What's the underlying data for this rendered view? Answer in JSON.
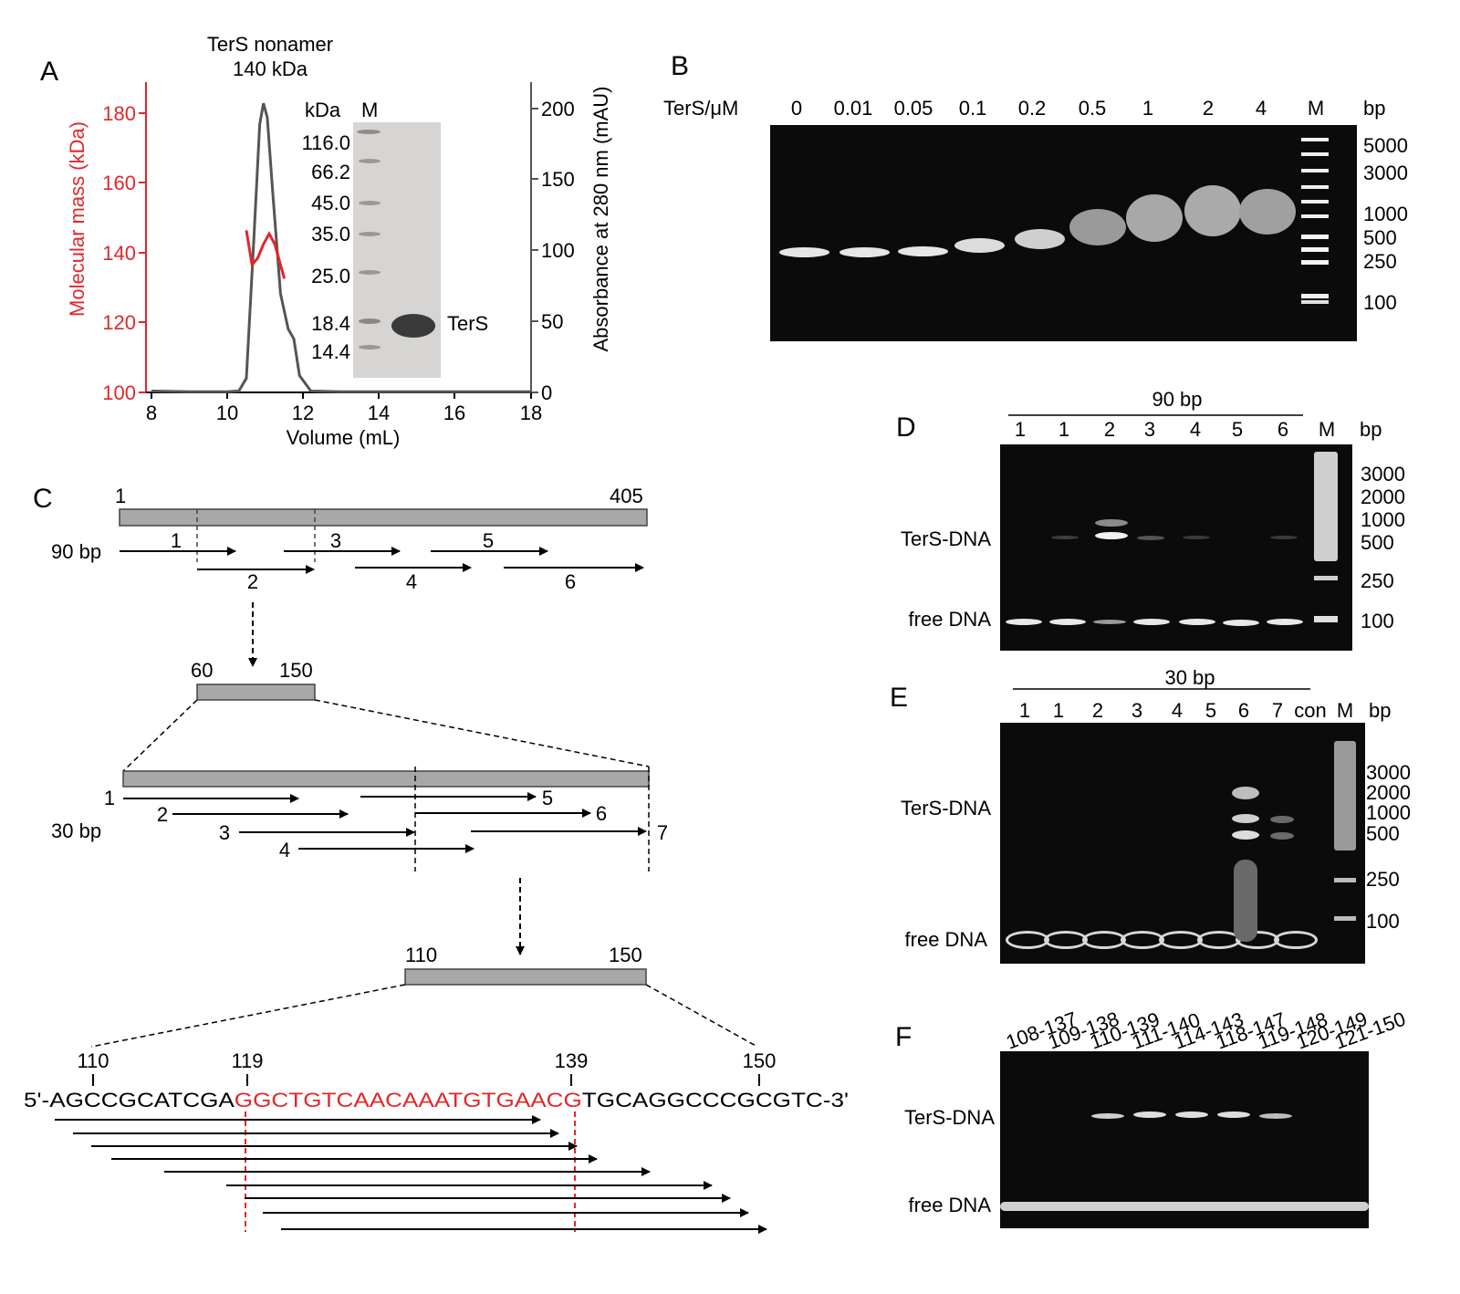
{
  "colors": {
    "red": "#e3262b",
    "grey_line": "#555555",
    "bar_fill": "#a9a7a7",
    "gel_bg": "#0b0b0b"
  },
  "panel_a": {
    "label": "A",
    "annotation_line1": "TerS nonamer",
    "annotation_line2": "140 kDa",
    "y_left_label": "Molecular mass (kDa)",
    "y_right_label": "Absorbance at 280 nm (mAU)",
    "x_label": "Volume (mL)",
    "inset_kda_label": "kDa",
    "inset_m_label": "M",
    "inset_markers": [
      "116.0",
      "66.2",
      "45.0",
      "35.0",
      "25.0",
      "18.4",
      "14.4"
    ],
    "inset_band_label": "TerS"
  },
  "chart_data": {
    "type": "line",
    "x_label": "Volume (mL)",
    "x_ticks": [
      "8",
      "10",
      "12",
      "14",
      "16",
      "18"
    ],
    "xlim": [
      8,
      18
    ],
    "y_left_label": "Molecular mass (kDa)",
    "y_left_ticks": [
      "100",
      "120",
      "140",
      "160",
      "180"
    ],
    "y_left_lim": [
      100,
      190
    ],
    "y_right_label": "Absorbance at 280 nm (mAU)",
    "y_right_ticks": [
      "0",
      "50",
      "100",
      "150",
      "200"
    ],
    "y_right_lim": [
      0,
      220
    ],
    "series": [
      {
        "axis": "right",
        "color": "#555555",
        "x": [
          8,
          9,
          10,
          10.3,
          10.5,
          10.7,
          10.85,
          10.95,
          11.05,
          11.2,
          11.4,
          11.6,
          11.75,
          11.9,
          12.2,
          13,
          14,
          16,
          18
        ],
        "y": [
          1,
          0.5,
          0.5,
          1,
          10,
          110,
          190,
          205,
          195,
          140,
          70,
          45,
          38,
          12,
          1,
          0.5,
          0.5,
          0.5,
          0.5
        ]
      },
      {
        "axis": "left",
        "color": "#e3262b",
        "x": [
          10.5,
          10.65,
          10.8,
          10.95,
          11.1,
          11.25,
          11.4,
          11.5
        ],
        "y": [
          147,
          137,
          139,
          143,
          146,
          143,
          137,
          133
        ]
      }
    ]
  },
  "panel_b": {
    "label": "B",
    "row_label": "TerS/μM",
    "lanes": [
      "0",
      "0.01",
      "0.05",
      "0.1",
      "0.2",
      "0.5",
      "1",
      "2",
      "4",
      "M"
    ],
    "bp_label": "bp",
    "markers": [
      "5000",
      "3000",
      "1000",
      "500",
      "250",
      "100"
    ]
  },
  "panel_c": {
    "label": "C",
    "full_start": "1",
    "full_end": "405",
    "row90_label": "90 bp",
    "arrows90": [
      "1",
      "2",
      "3",
      "4",
      "5",
      "6"
    ],
    "region1_start": "60",
    "region1_end": "150",
    "row30_label": "30 bp",
    "arrows30": [
      "1",
      "2",
      "3",
      "4",
      "5",
      "6",
      "7"
    ],
    "region2_start": "110",
    "region2_end": "150",
    "pos110": "110",
    "pos119": "119",
    "pos139": "139",
    "pos150": "150",
    "seq_prefix": "5'-AGCCGCATCGA",
    "seq_core": "GGCTGTCAACAAATGTGAACG",
    "seq_suffix": "TGCAGGCCCGCGTC-3'"
  },
  "panel_d": {
    "label": "D",
    "header": "90 bp",
    "lanes": [
      "1",
      "1",
      "2",
      "3",
      "4",
      "5",
      "6",
      "M"
    ],
    "bp_label": "bp",
    "markers": [
      "3000",
      "2000",
      "1000",
      "500",
      "250",
      "100"
    ],
    "complex_label": "TerS-DNA",
    "free_label": "free DNA"
  },
  "panel_e": {
    "label": "E",
    "header": "30 bp",
    "lanes": [
      "1",
      "1",
      "2",
      "3",
      "4",
      "5",
      "6",
      "7",
      "con",
      "M"
    ],
    "bp_label": "bp",
    "markers": [
      "3000",
      "2000",
      "1000",
      "500",
      "250",
      "100"
    ],
    "complex_label": "TerS-DNA",
    "free_label": "free DNA"
  },
  "panel_f": {
    "label": "F",
    "lanes": [
      "108-137",
      "109-138",
      "110-139",
      "111-140",
      "114-143",
      "118-147",
      "119-148",
      "120-149",
      "121-150"
    ],
    "complex_label": "TerS-DNA",
    "free_label": "free DNA"
  }
}
